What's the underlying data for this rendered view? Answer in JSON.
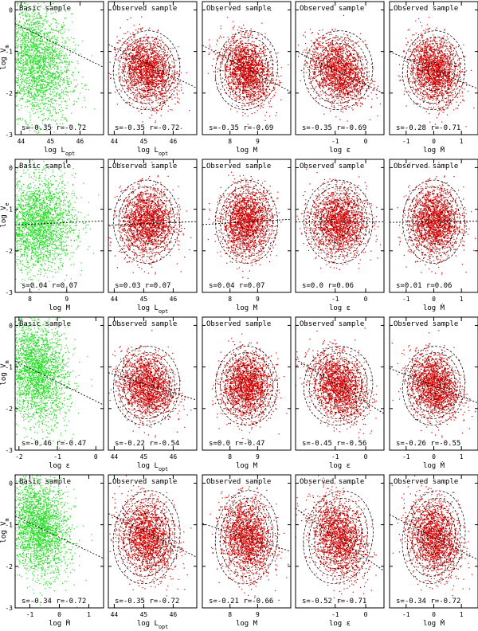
{
  "figure": {
    "background": "#ffffff",
    "colors": {
      "basic": "#22dd22",
      "observed": "#dd0000",
      "frame": "#000000"
    }
  },
  "chart_data": [
    {
      "type": "scatter",
      "row": 0,
      "col": 0,
      "title": "Basic sample",
      "xlabel": "log L_opt",
      "ylabel": "log V_m",
      "xlim": [
        43.8,
        46.8
      ],
      "ylim": [
        -3,
        0.2
      ],
      "xticks": [
        44,
        45,
        46
      ],
      "xticklabels": [
        "44",
        "45",
        "46"
      ],
      "yticks": [
        -3,
        -2,
        -1,
        0
      ],
      "yticklabels": [
        "-3",
        "-2",
        "-1",
        "0"
      ],
      "stat_text": "s=-0.35   r=-0.72",
      "fit": {
        "slope": -0.35,
        "intercept": 15.0
      },
      "cloud": {
        "x_mean": 44.5,
        "y_mean": -1.25,
        "x_sd": 0.6,
        "y_sd": 0.7,
        "n": 2500
      },
      "contours": false
    },
    {
      "type": "scatter",
      "row": 0,
      "col": 1,
      "title": "Observed sample",
      "xlabel": "log L_opt",
      "ylabel": "",
      "xlim": [
        43.8,
        46.8
      ],
      "ylim": [
        -3,
        0.2
      ],
      "xticks": [
        44,
        45,
        46
      ],
      "xticklabels": [
        "44",
        "45",
        "46"
      ],
      "yticks": [
        -3,
        -2,
        -1,
        0
      ],
      "yticklabels": [],
      "stat_text": "s=-0.35   r=-0.72",
      "fit": {
        "slope": -0.35,
        "intercept": 14.5
      },
      "cloud": {
        "x_mean": 45.1,
        "y_mean": -1.45,
        "x_sd": 0.45,
        "y_sd": 0.38,
        "n": 1800
      },
      "contours": true
    },
    {
      "type": "scatter",
      "row": 0,
      "col": 2,
      "title": "Observed sample",
      "xlabel": "log M",
      "ylabel": "",
      "xlim": [
        7.0,
        10.2
      ],
      "ylim": [
        -3,
        0.2
      ],
      "xticks": [
        8,
        9
      ],
      "xticklabels": [
        "8",
        "9"
      ],
      "yticks": [
        -3,
        -2,
        -1,
        0
      ],
      "yticklabels": [],
      "stat_text": "s=-0.35   r=-0.69",
      "fit": {
        "slope": -0.35,
        "intercept": 1.6
      },
      "cloud": {
        "x_mean": 8.6,
        "y_mean": -1.45,
        "x_sd": 0.45,
        "y_sd": 0.38,
        "n": 1800
      },
      "contours": true
    },
    {
      "type": "scatter",
      "row": 0,
      "col": 3,
      "title": "Observed sample",
      "xlabel": "log ε",
      "ylabel": "",
      "xlim": [
        -2.3,
        0.6
      ],
      "ylim": [
        -3,
        0.2
      ],
      "xticks": [
        -1,
        0
      ],
      "xticklabels": [
        "-1",
        "0"
      ],
      "yticks": [
        -3,
        -2,
        -1,
        0
      ],
      "yticklabels": [],
      "stat_text": "s=-0.35   r=-0.69",
      "fit": {
        "slope": -0.35,
        "intercept": -1.8
      },
      "cloud": {
        "x_mean": -0.9,
        "y_mean": -1.45,
        "x_sd": 0.45,
        "y_sd": 0.38,
        "n": 1800
      },
      "contours": true
    },
    {
      "type": "scatter",
      "row": 0,
      "col": 4,
      "title": "Observed sample",
      "xlabel": "log Ṁ",
      "ylabel": "",
      "xlim": [
        -1.6,
        1.6
      ],
      "ylim": [
        -3,
        0.2
      ],
      "xticks": [
        -1,
        0,
        1
      ],
      "xticklabels": [
        "-1",
        "0",
        "1"
      ],
      "yticks": [
        -3,
        -2,
        -1,
        0
      ],
      "yticklabels": [],
      "stat_text": "s=-0.28   r=-0.71",
      "fit": {
        "slope": -0.28,
        "intercept": -1.45
      },
      "cloud": {
        "x_mean": 0.0,
        "y_mean": -1.45,
        "x_sd": 0.45,
        "y_sd": 0.38,
        "n": 1800
      },
      "contours": true
    },
    {
      "type": "scatter",
      "row": 1,
      "col": 0,
      "title": "Basic sample",
      "xlabel": "log M",
      "ylabel": "log V_e",
      "xlim": [
        7.6,
        10.0
      ],
      "ylim": [
        -3,
        0.2
      ],
      "xticks": [
        8,
        9
      ],
      "xticklabels": [
        "8",
        "9"
      ],
      "yticks": [
        -3,
        -2,
        -1,
        0
      ],
      "yticklabels": [
        "-3",
        "-2",
        "-1",
        "0"
      ],
      "stat_text": "s=0.04   r=0.07",
      "fit": {
        "slope": 0.04,
        "intercept": -1.68
      },
      "cloud": {
        "x_mean": 8.2,
        "y_mean": -1.35,
        "x_sd": 0.5,
        "y_sd": 0.55,
        "n": 2500
      },
      "contours": false
    },
    {
      "type": "scatter",
      "row": 1,
      "col": 1,
      "title": "Observed sample",
      "xlabel": "log L_opt",
      "ylabel": "",
      "xlim": [
        43.8,
        46.8
      ],
      "ylim": [
        -3,
        0.2
      ],
      "xticks": [
        44,
        45,
        46
      ],
      "xticklabels": [
        "44",
        "45",
        "46"
      ],
      "yticks": [
        -3,
        -2,
        -1,
        0
      ],
      "yticklabels": [],
      "stat_text": "s=0.03   r=0.07",
      "fit": {
        "slope": 0.03,
        "intercept": -2.7
      },
      "cloud": {
        "x_mean": 45.1,
        "y_mean": -1.3,
        "x_sd": 0.45,
        "y_sd": 0.4,
        "n": 1800
      },
      "contours": true
    },
    {
      "type": "scatter",
      "row": 1,
      "col": 2,
      "title": "Observed sample",
      "xlabel": "log M",
      "ylabel": "",
      "xlim": [
        7.0,
        10.2
      ],
      "ylim": [
        -3,
        0.2
      ],
      "xticks": [
        8,
        9
      ],
      "xticklabels": [
        "8",
        "9"
      ],
      "yticks": [
        -3,
        -2,
        -1,
        0
      ],
      "yticklabels": [],
      "stat_text": "s=0.04   r=0.07",
      "fit": {
        "slope": 0.04,
        "intercept": -1.65
      },
      "cloud": {
        "x_mean": 8.6,
        "y_mean": -1.3,
        "x_sd": 0.45,
        "y_sd": 0.4,
        "n": 1800
      },
      "contours": true
    },
    {
      "type": "scatter",
      "row": 1,
      "col": 3,
      "title": "Observed sample",
      "xlabel": "log ε",
      "ylabel": "",
      "xlim": [
        -2.3,
        0.6
      ],
      "ylim": [
        -3,
        0.2
      ],
      "xticks": [
        -1,
        0
      ],
      "xticklabels": [
        "-1",
        "0"
      ],
      "yticks": [
        -3,
        -2,
        -1,
        0
      ],
      "yticklabels": [],
      "stat_text": "s=0.0   r=0.06",
      "fit": {
        "slope": 0.0,
        "intercept": -1.3
      },
      "cloud": {
        "x_mean": -0.9,
        "y_mean": -1.3,
        "x_sd": 0.45,
        "y_sd": 0.4,
        "n": 1800
      },
      "contours": true
    },
    {
      "type": "scatter",
      "row": 1,
      "col": 4,
      "title": "Observed sample",
      "xlabel": "log Ṁ",
      "ylabel": "",
      "xlim": [
        -1.6,
        1.6
      ],
      "ylim": [
        -3,
        0.2
      ],
      "xticks": [
        -1,
        0,
        1
      ],
      "xticklabels": [
        "-1",
        "0",
        "1"
      ],
      "yticks": [
        -3,
        -2,
        -1,
        0
      ],
      "yticklabels": [],
      "stat_text": "s=0.01   r=0.06",
      "fit": {
        "slope": 0.01,
        "intercept": -1.3
      },
      "cloud": {
        "x_mean": 0.0,
        "y_mean": -1.3,
        "x_sd": 0.45,
        "y_sd": 0.4,
        "n": 1800
      },
      "contours": true
    },
    {
      "type": "scatter",
      "row": 2,
      "col": 0,
      "title": "Basic sample",
      "xlabel": "log ε",
      "ylabel": "log V_m",
      "xlim": [
        -2.1,
        0.2
      ],
      "ylim": [
        -3,
        0.2
      ],
      "xticks": [
        -2,
        -1,
        0
      ],
      "xticklabels": [
        "-2",
        "-1",
        "0"
      ],
      "yticks": [
        -3,
        -2,
        -1,
        0
      ],
      "yticklabels": [
        "-3",
        "-2",
        "-1",
        "0"
      ],
      "stat_text": "s=-0.46   r=-0.47",
      "fit": {
        "slope": -0.46,
        "intercept": -1.82
      },
      "cloud": {
        "x_mean": -1.55,
        "y_mean": -1.1,
        "x_sd": 0.4,
        "y_sd": 0.6,
        "n": 2500
      },
      "contours": false
    },
    {
      "type": "scatter",
      "row": 2,
      "col": 1,
      "title": "Observed sample",
      "xlabel": "log L_opt",
      "ylabel": "",
      "xlim": [
        43.8,
        46.8
      ],
      "ylim": [
        -3,
        0.2
      ],
      "xticks": [
        44,
        45,
        46
      ],
      "xticklabels": [
        "44",
        "45",
        "46"
      ],
      "yticks": [
        -3,
        -2,
        -1,
        0
      ],
      "yticklabels": [],
      "stat_text": "s=-0.22   r=-0.54",
      "fit": {
        "slope": -0.22,
        "intercept": 8.5
      },
      "cloud": {
        "x_mean": 45.1,
        "y_mean": -1.45,
        "x_sd": 0.45,
        "y_sd": 0.38,
        "n": 1800
      },
      "contours": true
    },
    {
      "type": "scatter",
      "row": 2,
      "col": 2,
      "title": "Observed sample",
      "xlabel": "log M",
      "ylabel": "",
      "xlim": [
        7.0,
        10.2
      ],
      "ylim": [
        -3,
        0.2
      ],
      "xticks": [
        8,
        9
      ],
      "xticklabels": [
        "8",
        "9"
      ],
      "yticks": [
        -3,
        -2,
        -1,
        0
      ],
      "yticklabels": [],
      "stat_text": "s=0.0   r=-0.47",
      "fit": null,
      "cloud": {
        "x_mean": 8.6,
        "y_mean": -1.45,
        "x_sd": 0.45,
        "y_sd": 0.38,
        "n": 1800
      },
      "contours": true
    },
    {
      "type": "scatter",
      "row": 2,
      "col": 3,
      "title": "Observed sample",
      "xlabel": "log ε",
      "ylabel": "",
      "xlim": [
        -2.3,
        0.6
      ],
      "ylim": [
        -3,
        0.2
      ],
      "xticks": [
        -1,
        0
      ],
      "xticklabels": [
        "-1",
        "0"
      ],
      "yticks": [
        -3,
        -2,
        -1,
        0
      ],
      "yticklabels": [],
      "stat_text": "s=-0.45   r=-0.56",
      "fit": {
        "slope": -0.45,
        "intercept": -1.85
      },
      "cloud": {
        "x_mean": -0.9,
        "y_mean": -1.45,
        "x_sd": 0.45,
        "y_sd": 0.38,
        "n": 1800
      },
      "contours": true
    },
    {
      "type": "scatter",
      "row": 2,
      "col": 4,
      "title": "Observed sample",
      "xlabel": "log Ṁ",
      "ylabel": "",
      "xlim": [
        -1.6,
        1.6
      ],
      "ylim": [
        -3,
        0.2
      ],
      "xticks": [
        -1,
        0,
        1
      ],
      "xticklabels": [
        "-1",
        "0",
        "1"
      ],
      "yticks": [
        -3,
        -2,
        -1,
        0
      ],
      "yticklabels": [],
      "stat_text": "s=-0.26   r=-0.55",
      "fit": {
        "slope": -0.26,
        "intercept": -1.45
      },
      "cloud": {
        "x_mean": 0.0,
        "y_mean": -1.45,
        "x_sd": 0.45,
        "y_sd": 0.38,
        "n": 1800
      },
      "contours": true
    },
    {
      "type": "scatter",
      "row": 3,
      "col": 0,
      "title": "Basic sample",
      "xlabel": "log Ṁ",
      "ylabel": "log V_m",
      "xlim": [
        -1.5,
        1.5
      ],
      "ylim": [
        -3,
        0.2
      ],
      "xticks": [
        -1,
        0,
        1
      ],
      "xticklabels": [
        "-1",
        "0",
        "1"
      ],
      "yticks": [
        -3,
        -2,
        -1,
        0
      ],
      "yticklabels": [
        "-3",
        "-2",
        "-1",
        "0"
      ],
      "stat_text": "s=-0.34   r=-0.72",
      "fit": {
        "slope": -0.34,
        "intercept": -1.3
      },
      "cloud": {
        "x_mean": -0.7,
        "y_mean": -1.05,
        "x_sd": 0.5,
        "y_sd": 0.55,
        "n": 2500
      },
      "contours": false
    },
    {
      "type": "scatter",
      "row": 3,
      "col": 1,
      "title": "Observed sample",
      "xlabel": "log L_opt",
      "ylabel": "",
      "xlim": [
        43.8,
        46.8
      ],
      "ylim": [
        -3,
        0.2
      ],
      "xticks": [
        44,
        45,
        46
      ],
      "xticklabels": [
        "44",
        "45",
        "46"
      ],
      "yticks": [
        -3,
        -2,
        -1,
        0
      ],
      "yticklabels": [],
      "stat_text": "s=-0.35   r=-0.72",
      "fit": {
        "slope": -0.35,
        "intercept": 14.6
      },
      "cloud": {
        "x_mean": 45.1,
        "y_mean": -1.3,
        "x_sd": 0.45,
        "y_sd": 0.45,
        "n": 1800
      },
      "contours": true
    },
    {
      "type": "scatter",
      "row": 3,
      "col": 2,
      "title": "Observed sample",
      "xlabel": "log M",
      "ylabel": "",
      "xlim": [
        7.0,
        10.2
      ],
      "ylim": [
        -3,
        0.2
      ],
      "xticks": [
        8,
        9
      ],
      "xticklabels": [
        "8",
        "9"
      ],
      "yticks": [
        -3,
        -2,
        -1,
        0
      ],
      "yticklabels": [],
      "stat_text": "s=-0.21   r=-0.66",
      "fit": {
        "slope": -0.21,
        "intercept": 0.5
      },
      "cloud": {
        "x_mean": 8.6,
        "y_mean": -1.3,
        "x_sd": 0.45,
        "y_sd": 0.45,
        "n": 1800
      },
      "contours": true
    },
    {
      "type": "scatter",
      "row": 3,
      "col": 3,
      "title": "Observed sample",
      "xlabel": "log ε",
      "ylabel": "",
      "xlim": [
        -2.3,
        0.6
      ],
      "ylim": [
        -3,
        0.2
      ],
      "xticks": [
        -1,
        0
      ],
      "xticklabels": [
        "-1",
        "0"
      ],
      "yticks": [
        -3,
        -2,
        -1,
        0
      ],
      "yticklabels": [],
      "stat_text": "s=-0.52   r=-0.71",
      "fit": {
        "slope": -0.52,
        "intercept": -1.8
      },
      "cloud": {
        "x_mean": -0.9,
        "y_mean": -1.3,
        "x_sd": 0.45,
        "y_sd": 0.45,
        "n": 1800
      },
      "contours": true
    },
    {
      "type": "scatter",
      "row": 3,
      "col": 4,
      "title": "Observed sample",
      "xlabel": "log Ṁ",
      "ylabel": "",
      "xlim": [
        -1.6,
        1.6
      ],
      "ylim": [
        -3,
        0.2
      ],
      "xticks": [
        -1,
        0,
        1
      ],
      "xticklabels": [
        "-1",
        "0",
        "1"
      ],
      "yticks": [
        -3,
        -2,
        -1,
        0
      ],
      "yticklabels": [],
      "stat_text": "s=-0.34   r=-0.72",
      "fit": {
        "slope": -0.34,
        "intercept": -1.3
      },
      "cloud": {
        "x_mean": 0.0,
        "y_mean": -1.3,
        "x_sd": 0.45,
        "y_sd": 0.45,
        "n": 1800
      },
      "contours": true
    }
  ]
}
